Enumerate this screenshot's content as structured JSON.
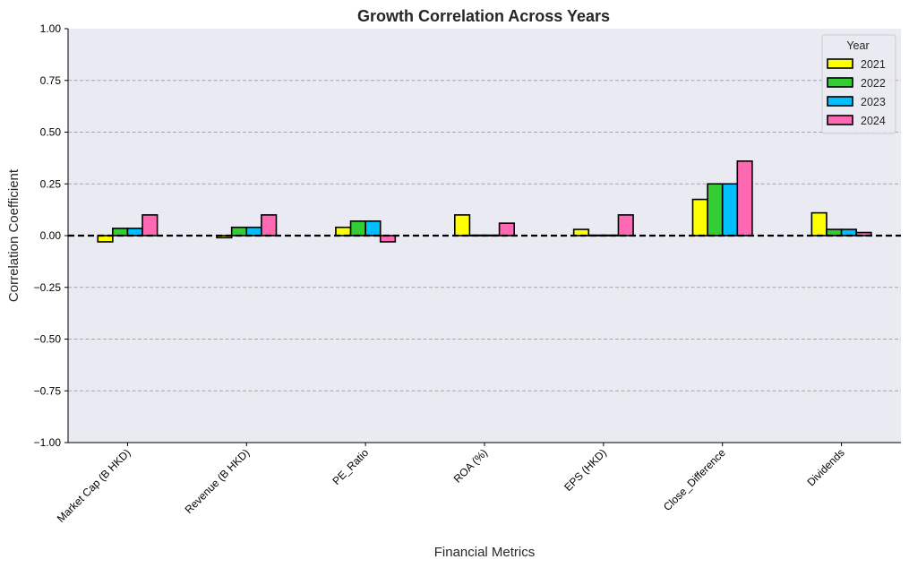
{
  "chart_data": {
    "type": "bar",
    "title": "Growth Correlation Across Years",
    "xlabel": "Financial Metrics",
    "ylabel": "Correlation Coefficient",
    "ylim": [
      -1.0,
      1.0
    ],
    "yticks": [
      "−1.00",
      "−0.75",
      "−0.50",
      "−0.25",
      "0.00",
      "0.25",
      "0.50",
      "0.75",
      "1.00"
    ],
    "ytick_values": [
      -1.0,
      -0.75,
      -0.5,
      -0.25,
      0.0,
      0.25,
      0.5,
      0.75,
      1.0
    ],
    "categories": [
      "Market Cap (B HKD)",
      "Revenue (B HKD)",
      "PE_Ratio",
      "ROA (%)",
      "EPS (HKD)",
      "Close_Difference",
      "Dividends"
    ],
    "grid": "horizontal dashed",
    "legend": {
      "title": "Year",
      "placement": "top-right"
    },
    "series": [
      {
        "name": "2021",
        "color": "#ffff00",
        "values": [
          -0.03,
          -0.01,
          0.04,
          0.1,
          0.03,
          0.175,
          0.11
        ]
      },
      {
        "name": "2022",
        "color": "#33cc33",
        "values": [
          0.035,
          0.04,
          0.07,
          0.002,
          0.002,
          0.25,
          0.03
        ]
      },
      {
        "name": "2023",
        "color": "#00bfff",
        "values": [
          0.035,
          0.04,
          0.07,
          0.002,
          0.002,
          0.25,
          0.03
        ]
      },
      {
        "name": "2024",
        "color": "#ff69b4",
        "values": [
          0.1,
          0.1,
          -0.03,
          0.06,
          0.1,
          0.36,
          0.015
        ]
      }
    ]
  }
}
